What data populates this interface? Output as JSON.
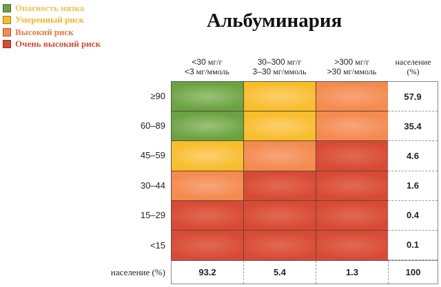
{
  "title": "Альбуминария",
  "legend": [
    {
      "label": "Опасность низка",
      "color": "#6aa341",
      "text_color": "#f5c24a"
    },
    {
      "label": "Умеренный риск",
      "color": "#f8bd2a",
      "text_color": "#f5b52a"
    },
    {
      "label": "Высокий риск",
      "color": "#f48a4e",
      "text_color": "#f0763e"
    },
    {
      "label": "Очень высокий риск",
      "color": "#d84a35",
      "text_color": "#d84a35"
    }
  ],
  "columns": [
    {
      "line1_num": "<30",
      "line1_unit": " мг/г",
      "line2_num": "<3",
      "line2_unit": " мг/ммоль"
    },
    {
      "line1_num": "30–300",
      "line1_unit": " мг/г",
      "line2_num": "3–30",
      "line2_unit": " мг/ммоль"
    },
    {
      "line1_num": ">300",
      "line1_unit": " мг/г",
      "line2_num": ">30",
      "line2_unit": " мг/ммоль"
    },
    {
      "line1_num": "",
      "line1_unit": "население",
      "line2_num": "",
      "line2_unit": "(%)"
    }
  ],
  "rows": [
    "≥90",
    "60–89",
    "45–59",
    "30–44",
    "15–29",
    "<15"
  ],
  "row_population": [
    "57.9",
    "35.4",
    "4.6",
    "1.6",
    "0.4",
    "0.1"
  ],
  "population_row": {
    "label": "население (%)",
    "values": [
      "93.2",
      "5.4",
      "1.3",
      "100"
    ]
  },
  "colors": {
    "low": "#6aa341",
    "moderate": "#f8bd2a",
    "high": "#f48a4e",
    "very_high": "#d84a35"
  },
  "chart_data": {
    "type": "heatmap",
    "title": "Альбуминария",
    "x_categories": [
      "<30 мг/г / <3 мг/ммоль",
      "30–300 мг/г / 3–30 мг/ммоль",
      ">300 мг/г / >30 мг/ммоль"
    ],
    "y_categories": [
      "≥90",
      "60–89",
      "45–59",
      "30–44",
      "15–29",
      "<15"
    ],
    "risk_levels": [
      "Опасность низка",
      "Умеренный риск",
      "Высокий риск",
      "Очень высокий риск"
    ],
    "matrix": [
      [
        "low",
        "moderate",
        "high"
      ],
      [
        "low",
        "moderate",
        "high"
      ],
      [
        "moderate",
        "high",
        "very_high"
      ],
      [
        "high",
        "very_high",
        "very_high"
      ],
      [
        "very_high",
        "very_high",
        "very_high"
      ],
      [
        "very_high",
        "very_high",
        "very_high"
      ]
    ],
    "row_population_percent": [
      57.9,
      35.4,
      4.6,
      1.6,
      0.4,
      0.1
    ],
    "column_population_percent": [
      93.2,
      5.4,
      1.3
    ],
    "total_population_percent": 100,
    "legend_position": "top-left"
  }
}
